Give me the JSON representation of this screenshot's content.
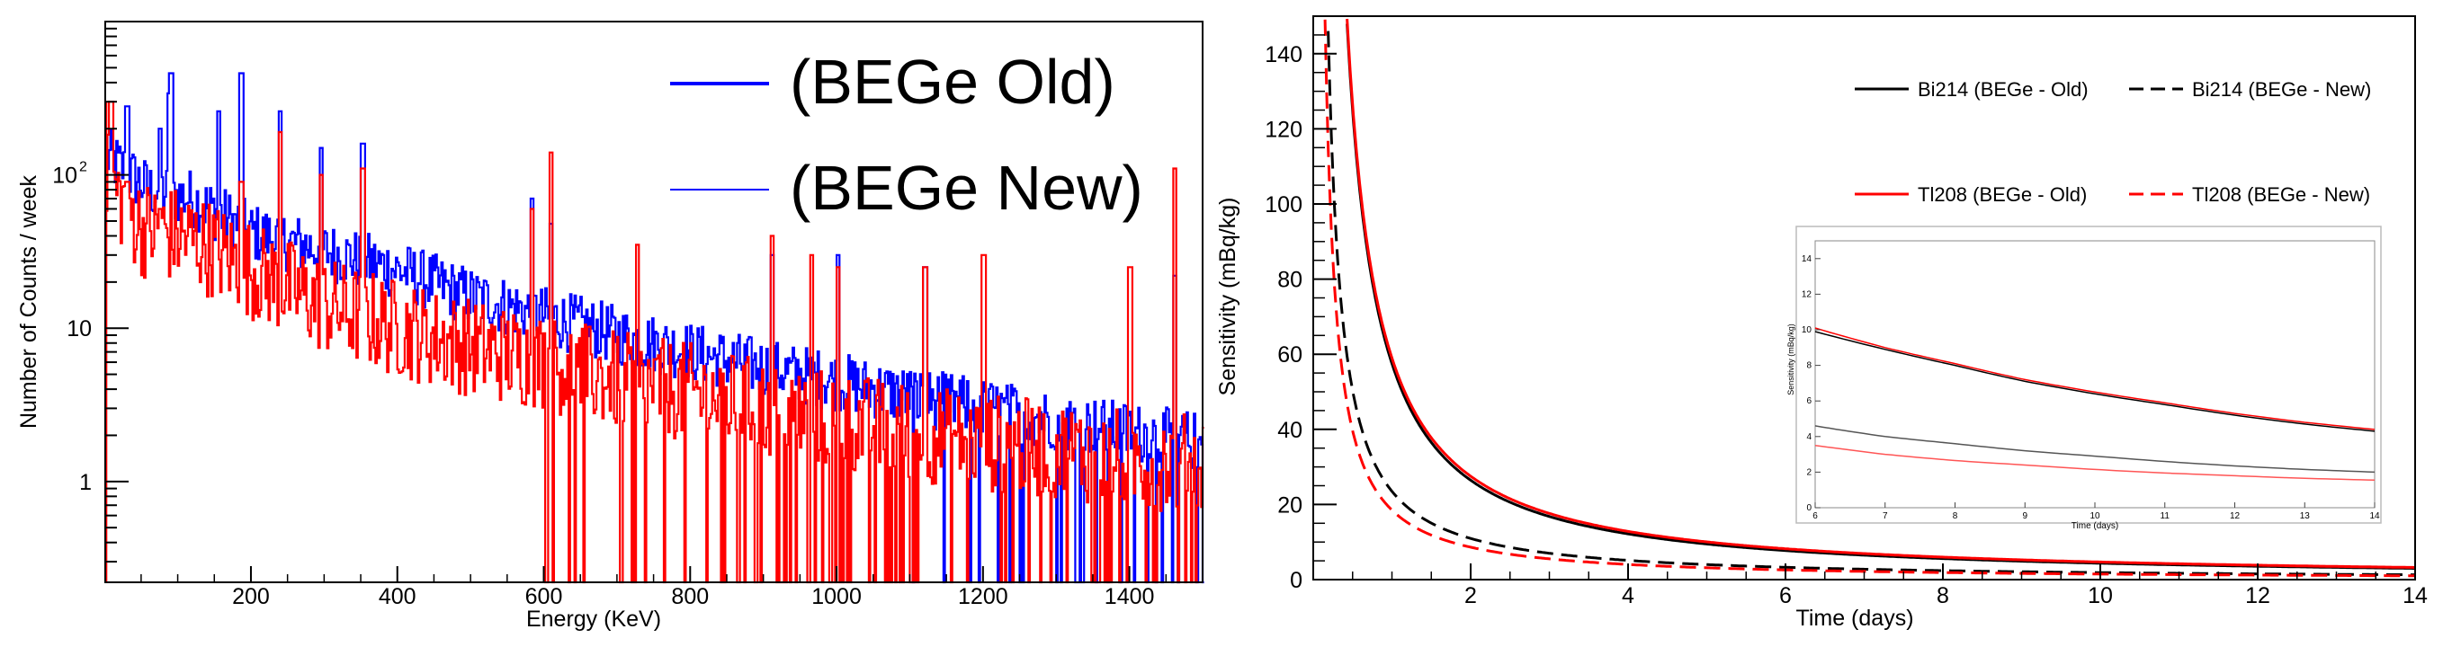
{
  "chart_data": [
    {
      "type": "line",
      "panel": "left",
      "title": "",
      "xlabel": "Energy (KeV)",
      "ylabel": "Number of Counts / week",
      "xlim": [
        1,
        1500
      ],
      "ylim": [
        0.22,
        1000
      ],
      "yscale": "log",
      "xticks": [
        200,
        400,
        600,
        800,
        1000,
        1200,
        1400
      ],
      "xtick_labels": [
        "200",
        "400",
        "600",
        "800",
        "1000",
        "1200",
        "1400"
      ],
      "yticks": [
        1,
        10,
        100
      ],
      "ytick_base": "10",
      "ytick_exp": "2",
      "legend_position": "top-right",
      "series": [
        {
          "name": "(BEGe Old)",
          "color": "#0000ff",
          "baseline": [
            [
              5,
              130
            ],
            [
              60,
              80
            ],
            [
              120,
              70
            ],
            [
              200,
              42
            ],
            [
              300,
              32
            ],
            [
              400,
              24
            ],
            [
              500,
              16
            ],
            [
              600,
              12
            ],
            [
              700,
              9
            ],
            [
              800,
              7
            ],
            [
              900,
              5.5
            ],
            [
              1000,
              4.5
            ],
            [
              1100,
              3.6
            ],
            [
              1200,
              3.0
            ],
            [
              1300,
              2.5
            ],
            [
              1400,
              2.1
            ],
            [
              1500,
              1.8
            ]
          ],
          "peaks": [
            [
              30,
              280
            ],
            [
              75,
              200
            ],
            [
              87,
              340
            ],
            [
              90,
              460
            ],
            [
              155,
              260
            ],
            [
              186,
              460
            ],
            [
              239,
              260
            ],
            [
              295,
              150
            ],
            [
              352,
              160
            ],
            [
              583,
              70
            ],
            [
              609,
              48
            ],
            [
              911,
              30
            ],
            [
              1001,
              30
            ],
            [
              1120,
              25
            ],
            [
              1461,
              22
            ]
          ]
        },
        {
          "name": "(BEGe New)",
          "color": "#ff0000",
          "baseline": [
            [
              5,
              90
            ],
            [
              50,
              45
            ],
            [
              120,
              38
            ],
            [
              200,
              24
            ],
            [
              300,
              14
            ],
            [
              400,
              10
            ],
            [
              500,
              7.5
            ],
            [
              600,
              6
            ],
            [
              700,
              4.5
            ],
            [
              800,
              3.8
            ],
            [
              900,
              3.0
            ],
            [
              1000,
              2.5
            ],
            [
              1100,
              2.1
            ],
            [
              1200,
              1.8
            ],
            [
              1300,
              1.6
            ],
            [
              1400,
              1.4
            ],
            [
              1500,
              1.3
            ]
          ],
          "peaks": [
            [
              8,
              300
            ],
            [
              30,
              90
            ],
            [
              75,
              60
            ],
            [
              186,
              90
            ],
            [
              239,
              190
            ],
            [
              295,
              100
            ],
            [
              352,
              110
            ],
            [
              583,
              60
            ],
            [
              609,
              140
            ],
            [
              727,
              35
            ],
            [
              911,
              40
            ],
            [
              965,
              30
            ],
            [
              1001,
              25
            ],
            [
              1120,
              25
            ],
            [
              1200,
              30
            ],
            [
              1400,
              25
            ],
            [
              1461,
              110
            ]
          ]
        }
      ]
    },
    {
      "type": "line",
      "panel": "right",
      "title": "",
      "xlabel": "Time (days)",
      "ylabel": "Sensitivity (mBq/kg)",
      "xlim": [
        0,
        14
      ],
      "ylim": [
        0,
        150
      ],
      "xticks": [
        2,
        4,
        6,
        8,
        10,
        12,
        14
      ],
      "xtick_labels": [
        "2",
        "4",
        "6",
        "8",
        "10",
        "12",
        "14"
      ],
      "yticks": [
        0,
        20,
        40,
        60,
        80,
        100,
        120,
        140
      ],
      "ytick_labels": [
        "0",
        "20",
        "40",
        "60",
        "80",
        "100",
        "120",
        "140"
      ],
      "legend_position": "top-right",
      "series": [
        {
          "name": "Bi214 (BEGe - Old)",
          "color": "#000000",
          "dash": "solid",
          "A": 57.5,
          "decay": 1.12
        },
        {
          "name": "Bi214 (BEGe - New)",
          "color": "#000000",
          "dash": "dashed",
          "A": 23.5,
          "decay": 1.1
        },
        {
          "name": "Tl208 (BEGe - Old)",
          "color": "#ff0000",
          "dash": "solid",
          "A": 59.0,
          "decay": 1.1
        },
        {
          "name": "Tl208 (BEGe - New)",
          "color": "#ff0000",
          "dash": "dashed",
          "A": 18.5,
          "decay": 1.1
        }
      ],
      "inset": {
        "xlabel": "Time (days)",
        "ylabel": "Sensitivity (mBq/kg)",
        "xlim": [
          6,
          14
        ],
        "ylim": [
          0,
          15
        ],
        "xticks": [
          6,
          7,
          8,
          9,
          10,
          11,
          12,
          13,
          14
        ],
        "xtick_labels": [
          "6",
          "7",
          "8",
          "9",
          "10",
          "11",
          "12",
          "13",
          "14"
        ],
        "yticks": [
          0,
          2,
          4,
          6,
          8,
          10,
          12,
          14
        ],
        "ytick_labels": [
          "0",
          "2",
          "4",
          "6",
          "8",
          "10",
          "12",
          "14"
        ],
        "series": [
          {
            "name": "Tl208 (BEGe - Old)",
            "color": "#ff0000",
            "values": [
              [
                6,
                10.1
              ],
              [
                7,
                9.0
              ],
              [
                8,
                8.1
              ],
              [
                9,
                7.2
              ],
              [
                10,
                6.5
              ],
              [
                11,
                5.9
              ],
              [
                12,
                5.3
              ],
              [
                13,
                4.8
              ],
              [
                14,
                4.4
              ]
            ]
          },
          {
            "name": "Bi214 (BEGe - Old)",
            "color": "#000000",
            "values": [
              [
                6,
                9.9
              ],
              [
                7,
                8.9
              ],
              [
                8,
                8.0
              ],
              [
                9,
                7.1
              ],
              [
                10,
                6.4
              ],
              [
                11,
                5.8
              ],
              [
                12,
                5.2
              ],
              [
                13,
                4.7
              ],
              [
                14,
                4.3
              ]
            ]
          },
          {
            "name": "Bi214 (BEGe - New)",
            "color": "#555555",
            "values": [
              [
                6,
                4.6
              ],
              [
                7,
                4.0
              ],
              [
                8,
                3.6
              ],
              [
                9,
                3.2
              ],
              [
                10,
                2.9
              ],
              [
                11,
                2.6
              ],
              [
                12,
                2.35
              ],
              [
                13,
                2.15
              ],
              [
                14,
                2.0
              ]
            ]
          },
          {
            "name": "Tl208 (BEGe - New)",
            "color": "#ff5555",
            "values": [
              [
                6,
                3.5
              ],
              [
                7,
                3.0
              ],
              [
                8,
                2.65
              ],
              [
                9,
                2.4
              ],
              [
                10,
                2.15
              ],
              [
                11,
                1.95
              ],
              [
                12,
                1.8
              ],
              [
                13,
                1.65
              ],
              [
                14,
                1.55
              ]
            ]
          }
        ]
      }
    }
  ]
}
